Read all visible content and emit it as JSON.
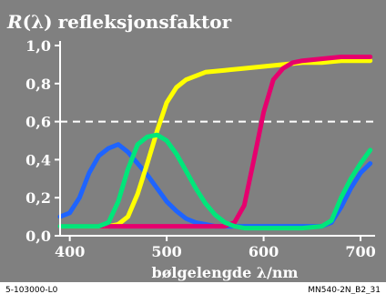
{
  "chart_data": {
    "type": "line",
    "title_prefix": "R",
    "title_paren": "(λ)",
    "title_suffix": "refleksjonsfaktor",
    "xlabel": "bølgelengde λ/nm",
    "ylabel": "",
    "xlim": [
      390,
      715
    ],
    "ylim": [
      0,
      1.0
    ],
    "x_ticks": [
      400,
      500,
      600,
      700
    ],
    "y_ticks": [
      0.0,
      0.2,
      0.4,
      0.6,
      0.8,
      1.0
    ],
    "y_tick_labels": [
      "0,0",
      "0,2",
      "0,4",
      "0,6",
      "0,8",
      "1,0"
    ],
    "grid": false,
    "reference_line": {
      "y": 0.6,
      "style": "dashed",
      "color": "#ffffff"
    },
    "background_color": "#808080",
    "series": [
      {
        "color": "#1e64ff",
        "x": [
          390,
          400,
          410,
          420,
          430,
          440,
          450,
          460,
          470,
          480,
          490,
          500,
          510,
          520,
          530,
          540,
          550,
          560,
          570,
          580,
          600,
          620,
          640,
          660,
          670,
          680,
          690,
          700,
          710
        ],
        "y": [
          0.1,
          0.12,
          0.2,
          0.33,
          0.42,
          0.46,
          0.48,
          0.44,
          0.38,
          0.32,
          0.25,
          0.18,
          0.13,
          0.09,
          0.07,
          0.06,
          0.05,
          0.05,
          0.05,
          0.05,
          0.05,
          0.05,
          0.05,
          0.05,
          0.07,
          0.15,
          0.25,
          0.33,
          0.38
        ]
      },
      {
        "color": "#ffff00",
        "x": [
          390,
          440,
          450,
          460,
          470,
          480,
          490,
          500,
          510,
          520,
          530,
          540,
          560,
          580,
          600,
          620,
          640,
          660,
          680,
          700,
          710
        ],
        "y": [
          0.05,
          0.05,
          0.06,
          0.1,
          0.22,
          0.38,
          0.55,
          0.7,
          0.78,
          0.82,
          0.84,
          0.86,
          0.87,
          0.88,
          0.89,
          0.9,
          0.91,
          0.91,
          0.92,
          0.92,
          0.92
        ]
      },
      {
        "color": "#e6006e",
        "x": [
          390,
          560,
          570,
          580,
          590,
          600,
          610,
          620,
          630,
          640,
          660,
          680,
          700,
          710
        ],
        "y": [
          0.05,
          0.05,
          0.07,
          0.16,
          0.4,
          0.65,
          0.82,
          0.88,
          0.91,
          0.92,
          0.93,
          0.94,
          0.94,
          0.94
        ]
      },
      {
        "color": "#00e67a",
        "x": [
          390,
          430,
          440,
          450,
          460,
          470,
          480,
          490,
          500,
          510,
          520,
          530,
          540,
          550,
          560,
          570,
          580,
          600,
          620,
          640,
          660,
          670,
          680,
          690,
          700,
          710
        ],
        "y": [
          0.05,
          0.05,
          0.07,
          0.18,
          0.35,
          0.48,
          0.52,
          0.53,
          0.5,
          0.43,
          0.34,
          0.25,
          0.17,
          0.11,
          0.07,
          0.05,
          0.04,
          0.04,
          0.04,
          0.04,
          0.05,
          0.08,
          0.2,
          0.3,
          0.38,
          0.45
        ]
      }
    ]
  },
  "footer": {
    "left": "5-103000-L0",
    "right": "MN540-2N_B2_31"
  }
}
